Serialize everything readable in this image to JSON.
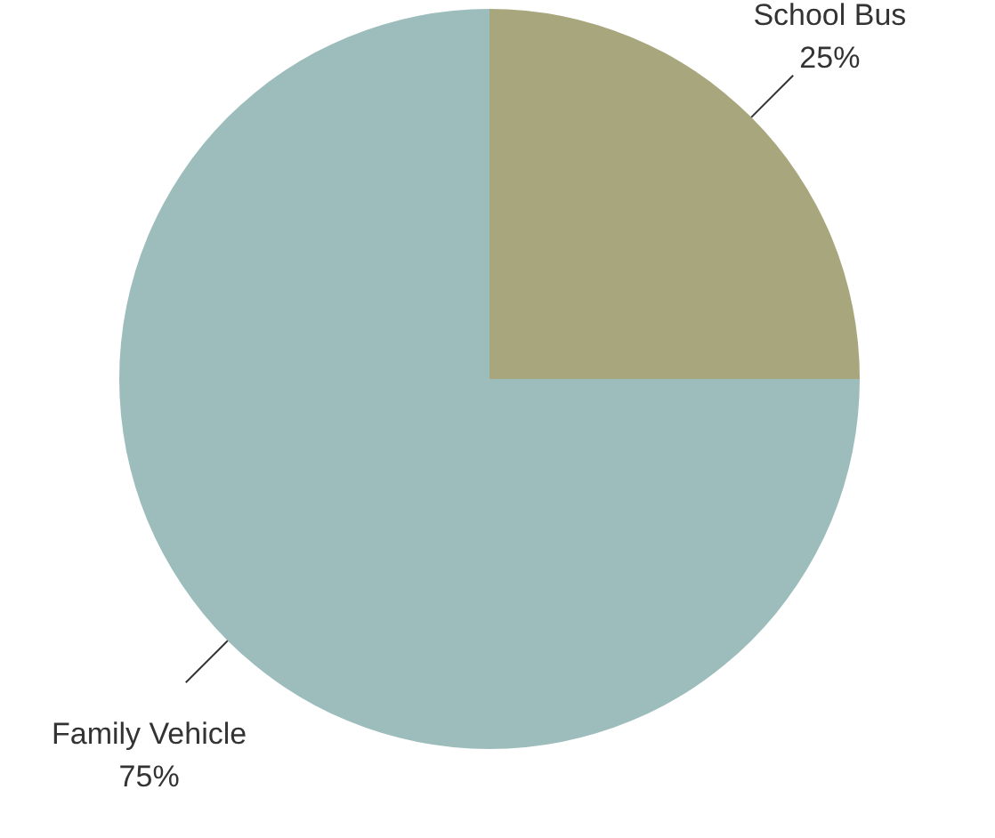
{
  "chart_data": {
    "type": "pie",
    "categories": [
      "School Bus",
      "Family Vehicle"
    ],
    "values": [
      25,
      75
    ],
    "colors": [
      "#a8a67c",
      "#9dbdbd"
    ],
    "value_labels": [
      "25%",
      "75%"
    ]
  }
}
